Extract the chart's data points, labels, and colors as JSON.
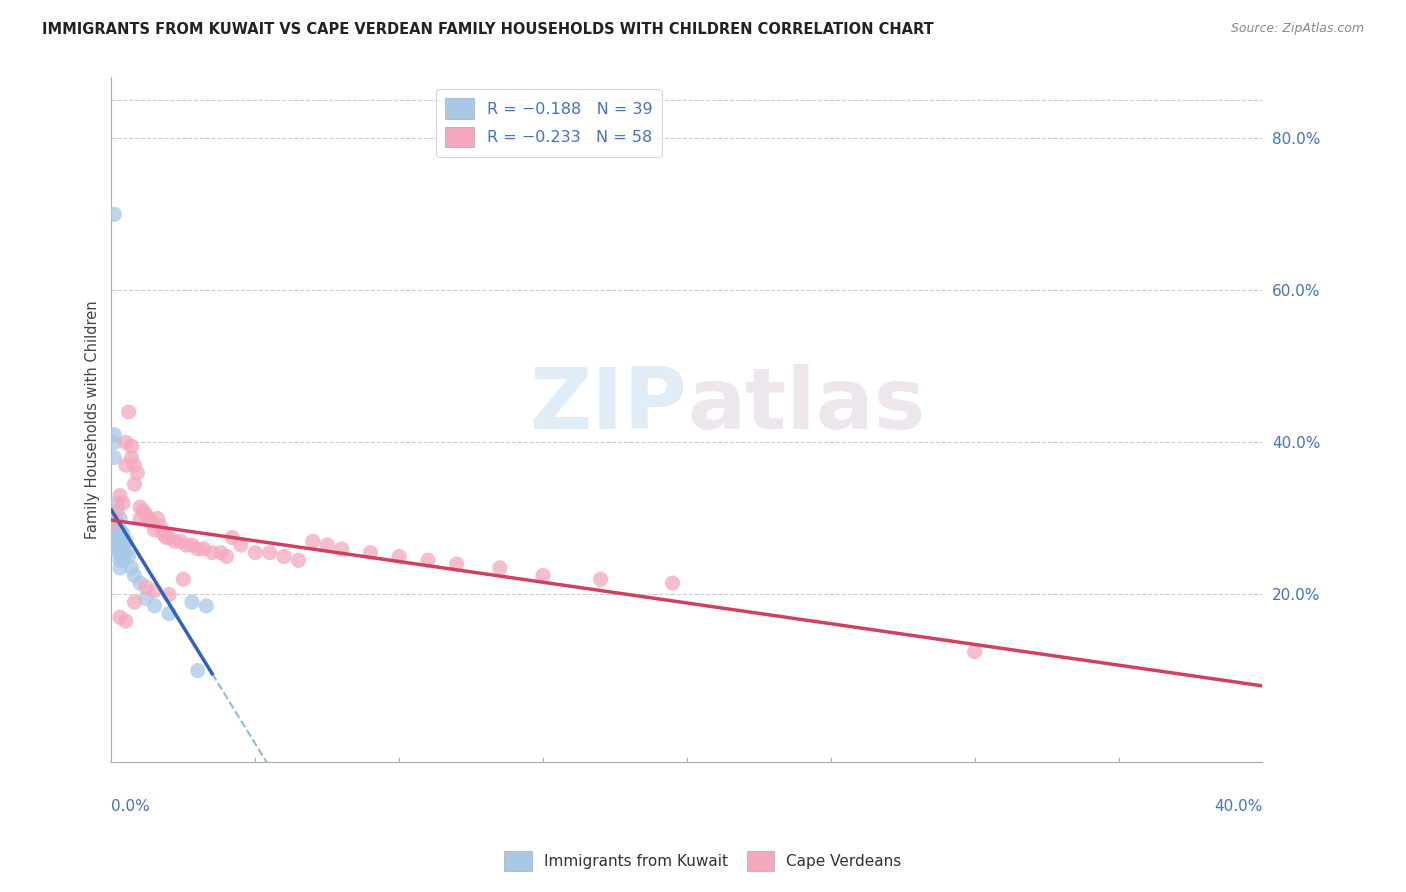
{
  "title": "IMMIGRANTS FROM KUWAIT VS CAPE VERDEAN FAMILY HOUSEHOLDS WITH CHILDREN CORRELATION CHART",
  "source": "Source: ZipAtlas.com",
  "ylabel": "Family Households with Children",
  "right_yticks": [
    "80.0%",
    "60.0%",
    "40.0%",
    "20.0%"
  ],
  "right_ytick_vals": [
    0.8,
    0.6,
    0.4,
    0.2
  ],
  "xlim": [
    0.0,
    0.4
  ],
  "ylim": [
    -0.02,
    0.88
  ],
  "color_kuwait": "#a8c8e8",
  "color_cape": "#f4a8bc",
  "color_kuwait_line": "#3060c0",
  "color_cape_line": "#d04060",
  "color_dashed": "#90b8d8",
  "watermark_zip": "ZIP",
  "watermark_atlas": "atlas",
  "kuwait_scatter_x": [
    0.0005,
    0.001,
    0.001,
    0.001,
    0.001,
    0.001,
    0.0015,
    0.0015,
    0.002,
    0.002,
    0.002,
    0.002,
    0.002,
    0.0025,
    0.0025,
    0.003,
    0.003,
    0.003,
    0.003,
    0.003,
    0.003,
    0.003,
    0.004,
    0.004,
    0.004,
    0.004,
    0.005,
    0.005,
    0.006,
    0.007,
    0.008,
    0.01,
    0.012,
    0.015,
    0.02,
    0.028,
    0.03,
    0.033,
    0.001
  ],
  "kuwait_scatter_y": [
    0.295,
    0.41,
    0.4,
    0.38,
    0.285,
    0.27,
    0.3,
    0.265,
    0.32,
    0.295,
    0.285,
    0.275,
    0.265,
    0.27,
    0.255,
    0.3,
    0.285,
    0.27,
    0.265,
    0.255,
    0.245,
    0.235,
    0.28,
    0.265,
    0.255,
    0.245,
    0.27,
    0.255,
    0.25,
    0.235,
    0.225,
    0.215,
    0.195,
    0.185,
    0.175,
    0.19,
    0.1,
    0.185,
    0.7
  ],
  "cape_scatter_x": [
    0.001,
    0.002,
    0.003,
    0.004,
    0.005,
    0.005,
    0.006,
    0.007,
    0.007,
    0.008,
    0.008,
    0.009,
    0.01,
    0.01,
    0.011,
    0.012,
    0.013,
    0.014,
    0.015,
    0.016,
    0.017,
    0.018,
    0.019,
    0.02,
    0.022,
    0.024,
    0.026,
    0.028,
    0.03,
    0.032,
    0.035,
    0.038,
    0.04,
    0.042,
    0.045,
    0.05,
    0.055,
    0.06,
    0.065,
    0.07,
    0.075,
    0.08,
    0.09,
    0.1,
    0.11,
    0.12,
    0.135,
    0.15,
    0.17,
    0.195,
    0.003,
    0.005,
    0.008,
    0.012,
    0.015,
    0.02,
    0.025,
    0.3
  ],
  "cape_scatter_y": [
    0.295,
    0.31,
    0.33,
    0.32,
    0.4,
    0.37,
    0.44,
    0.395,
    0.38,
    0.37,
    0.345,
    0.36,
    0.315,
    0.3,
    0.31,
    0.305,
    0.3,
    0.295,
    0.285,
    0.3,
    0.29,
    0.28,
    0.275,
    0.275,
    0.27,
    0.27,
    0.265,
    0.265,
    0.26,
    0.26,
    0.255,
    0.255,
    0.25,
    0.275,
    0.265,
    0.255,
    0.255,
    0.25,
    0.245,
    0.27,
    0.265,
    0.26,
    0.255,
    0.25,
    0.245,
    0.24,
    0.235,
    0.225,
    0.22,
    0.215,
    0.17,
    0.165,
    0.19,
    0.21,
    0.205,
    0.2,
    0.22,
    0.125
  ]
}
